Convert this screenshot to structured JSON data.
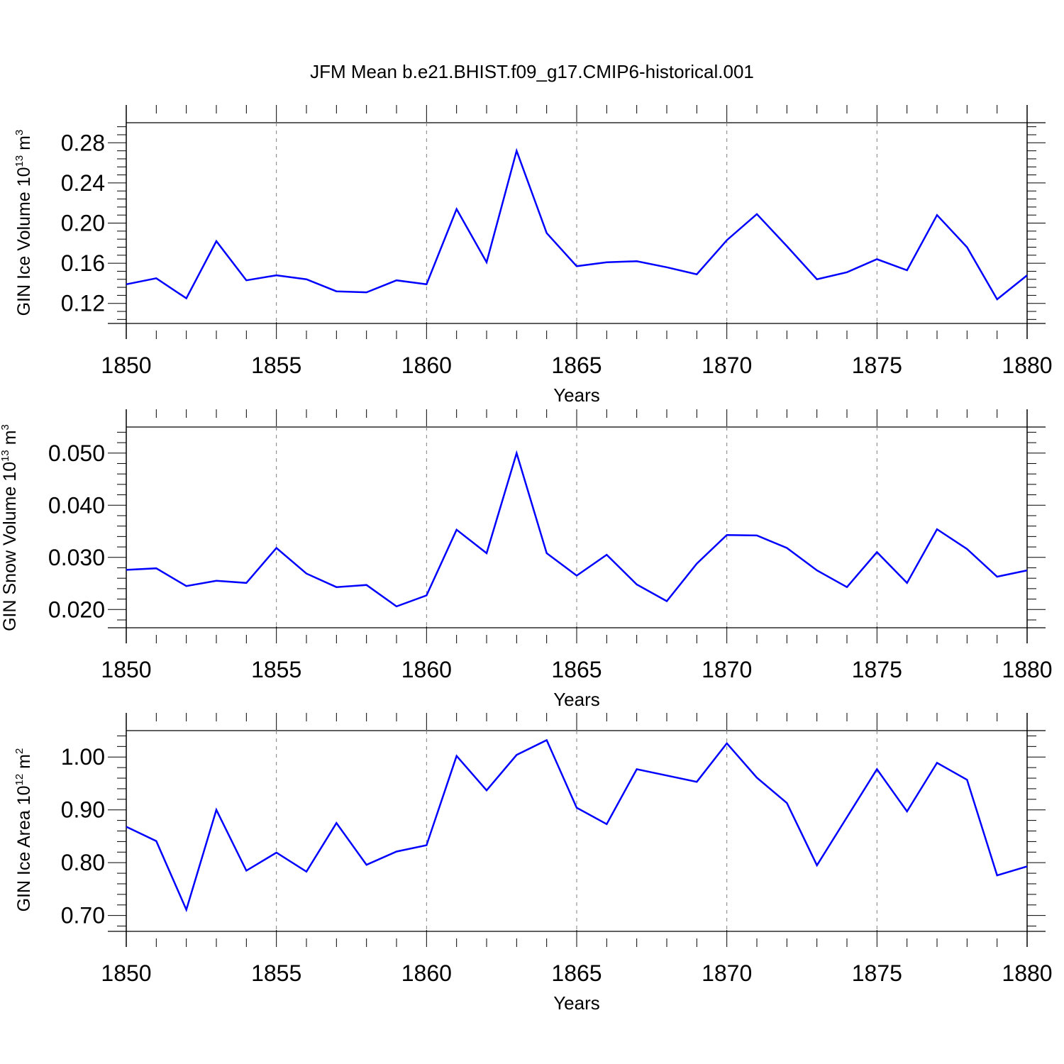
{
  "title": "JFM Mean b.e21.BHIST.f09_g17.CMIP6-historical.001",
  "colors": {
    "line": "#0000ff",
    "axis": "#000000",
    "grid": "#7f7f7f"
  },
  "chart_data": [
    {
      "type": "line",
      "ylabel": {
        "base": "GIN Ice Volume 10",
        "exp": "13",
        "unit": " m",
        "unit_exp": "3"
      },
      "xlabel": "Years",
      "xlim": [
        1850,
        1880
      ],
      "ylim": [
        0.1,
        0.3
      ],
      "yticks": [
        0.12,
        0.16,
        0.2,
        0.24,
        0.28
      ],
      "ytick_labels": [
        "0.12",
        "0.16",
        "0.20",
        "0.24",
        "0.28"
      ],
      "xticks": [
        1850,
        1855,
        1860,
        1865,
        1870,
        1875,
        1880
      ],
      "xtick_labels": [
        "1850",
        "1855",
        "1860",
        "1865",
        "1870",
        "1875",
        "1880"
      ],
      "grid": "vertical dashed at major x ticks",
      "x": [
        1850,
        1851,
        1852,
        1853,
        1854,
        1855,
        1856,
        1857,
        1858,
        1859,
        1860,
        1861,
        1862,
        1863,
        1864,
        1865,
        1866,
        1867,
        1868,
        1869,
        1870,
        1871,
        1872,
        1873,
        1874,
        1875,
        1876,
        1877,
        1878,
        1879,
        1880
      ],
      "y": [
        0.139,
        0.145,
        0.125,
        0.182,
        0.143,
        0.148,
        0.144,
        0.132,
        0.131,
        0.143,
        0.139,
        0.214,
        0.161,
        0.272,
        0.19,
        0.157,
        0.161,
        0.162,
        0.156,
        0.149,
        0.183,
        0.209,
        0.177,
        0.144,
        0.151,
        0.164,
        0.153,
        0.208,
        0.176,
        0.124,
        0.148
      ]
    },
    {
      "type": "line",
      "ylabel": {
        "base": "GIN Snow Volume 10",
        "exp": "13",
        "unit": " m",
        "unit_exp": "3"
      },
      "xlabel": "Years",
      "xlim": [
        1850,
        1880
      ],
      "ylim": [
        0.0165,
        0.055
      ],
      "yticks": [
        0.02,
        0.03,
        0.04,
        0.05
      ],
      "ytick_labels": [
        "0.020",
        "0.030",
        "0.040",
        "0.050"
      ],
      "xticks": [
        1850,
        1855,
        1860,
        1865,
        1870,
        1875,
        1880
      ],
      "xtick_labels": [
        "1850",
        "1855",
        "1860",
        "1865",
        "1870",
        "1875",
        "1880"
      ],
      "grid": "vertical dashed at major x ticks",
      "x": [
        1850,
        1851,
        1852,
        1853,
        1854,
        1855,
        1856,
        1857,
        1858,
        1859,
        1860,
        1861,
        1862,
        1863,
        1864,
        1865,
        1866,
        1867,
        1868,
        1869,
        1870,
        1871,
        1872,
        1873,
        1874,
        1875,
        1876,
        1877,
        1878,
        1879,
        1880
      ],
      "y": [
        0.0276,
        0.0279,
        0.0245,
        0.0255,
        0.0251,
        0.0318,
        0.0269,
        0.0243,
        0.0247,
        0.0206,
        0.0227,
        0.0353,
        0.0308,
        0.05,
        0.0308,
        0.0265,
        0.0305,
        0.0248,
        0.0216,
        0.0288,
        0.0343,
        0.0342,
        0.0318,
        0.0275,
        0.0243,
        0.031,
        0.0251,
        0.0354,
        0.0316,
        0.0263,
        0.0275
      ]
    },
    {
      "type": "line",
      "ylabel": {
        "base": "GIN Ice Area 10",
        "exp": "12",
        "unit": " m",
        "unit_exp": "2"
      },
      "xlabel": "Years",
      "xlim": [
        1850,
        1880
      ],
      "ylim": [
        0.67,
        1.05
      ],
      "yticks": [
        0.7,
        0.8,
        0.9,
        1.0
      ],
      "ytick_labels": [
        "0.70",
        "0.80",
        "0.90",
        "1.00"
      ],
      "xticks": [
        1850,
        1855,
        1860,
        1865,
        1870,
        1875,
        1880
      ],
      "xtick_labels": [
        "1850",
        "1855",
        "1860",
        "1865",
        "1870",
        "1875",
        "1880"
      ],
      "grid": "vertical dashed at major x ticks",
      "x": [
        1850,
        1851,
        1852,
        1853,
        1854,
        1855,
        1856,
        1857,
        1858,
        1859,
        1860,
        1861,
        1862,
        1863,
        1864,
        1865,
        1866,
        1867,
        1868,
        1869,
        1870,
        1871,
        1872,
        1873,
        1874,
        1875,
        1876,
        1877,
        1878,
        1879,
        1880
      ],
      "y": [
        0.868,
        0.841,
        0.711,
        0.9,
        0.785,
        0.819,
        0.783,
        0.875,
        0.796,
        0.821,
        0.833,
        1.002,
        0.937,
        1.004,
        1.032,
        0.904,
        0.873,
        0.977,
        0.965,
        0.953,
        1.026,
        0.961,
        0.913,
        0.795,
        0.886,
        0.977,
        0.897,
        0.989,
        0.957,
        0.776,
        0.793
      ]
    }
  ]
}
